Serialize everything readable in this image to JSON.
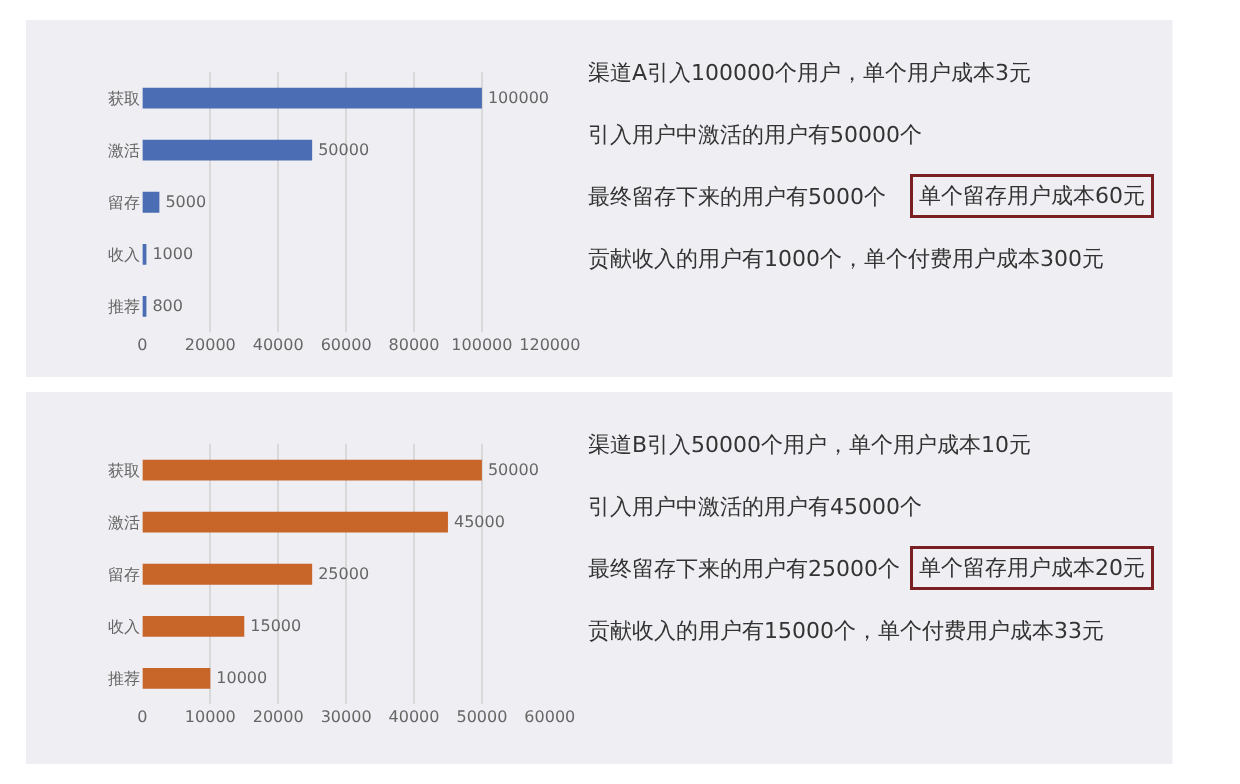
{
  "chart_data": [
    {
      "type": "bar",
      "orientation": "horizontal",
      "categories": [
        "获取",
        "激活",
        "留存",
        "收入",
        "推荐"
      ],
      "values": [
        100000,
        50000,
        5000,
        1000,
        800
      ],
      "color": "#4a6db3",
      "xlim": [
        0,
        120000
      ],
      "xticks": [
        0,
        20000,
        40000,
        60000,
        80000,
        100000,
        120000
      ],
      "grid": "x",
      "data_labels": true
    },
    {
      "type": "other",
      "annotations": [
        "渠道A引入100000个用户，单个用户成本3元",
        "引入用户中激活的用户有50000个",
        "最终留存下来的用户有5000个",
        "单个留存用户成本60元",
        "贡献收入的用户有1000个，单个付费用户成本300元"
      ]
    },
    {
      "type": "bar",
      "orientation": "horizontal",
      "categories": [
        "获取",
        "激活",
        "留存",
        "收入",
        "推荐"
      ],
      "values": [
        50000,
        45000,
        25000,
        15000,
        10000
      ],
      "color": "#c8662a",
      "xlim": [
        0,
        60000
      ],
      "xticks": [
        0,
        10000,
        20000,
        30000,
        40000,
        50000,
        60000
      ],
      "grid": "x",
      "data_labels": true
    },
    {
      "type": "other",
      "annotations": [
        "渠道B引入50000个用户，单个用户成本10元",
        "引入用户中激活的用户有45000个",
        "最终留存下来的用户有25000个",
        "单个留存用户成本20元",
        "贡献收入的用户有15000个，单个付费用户成本33元"
      ]
    }
  ]
}
